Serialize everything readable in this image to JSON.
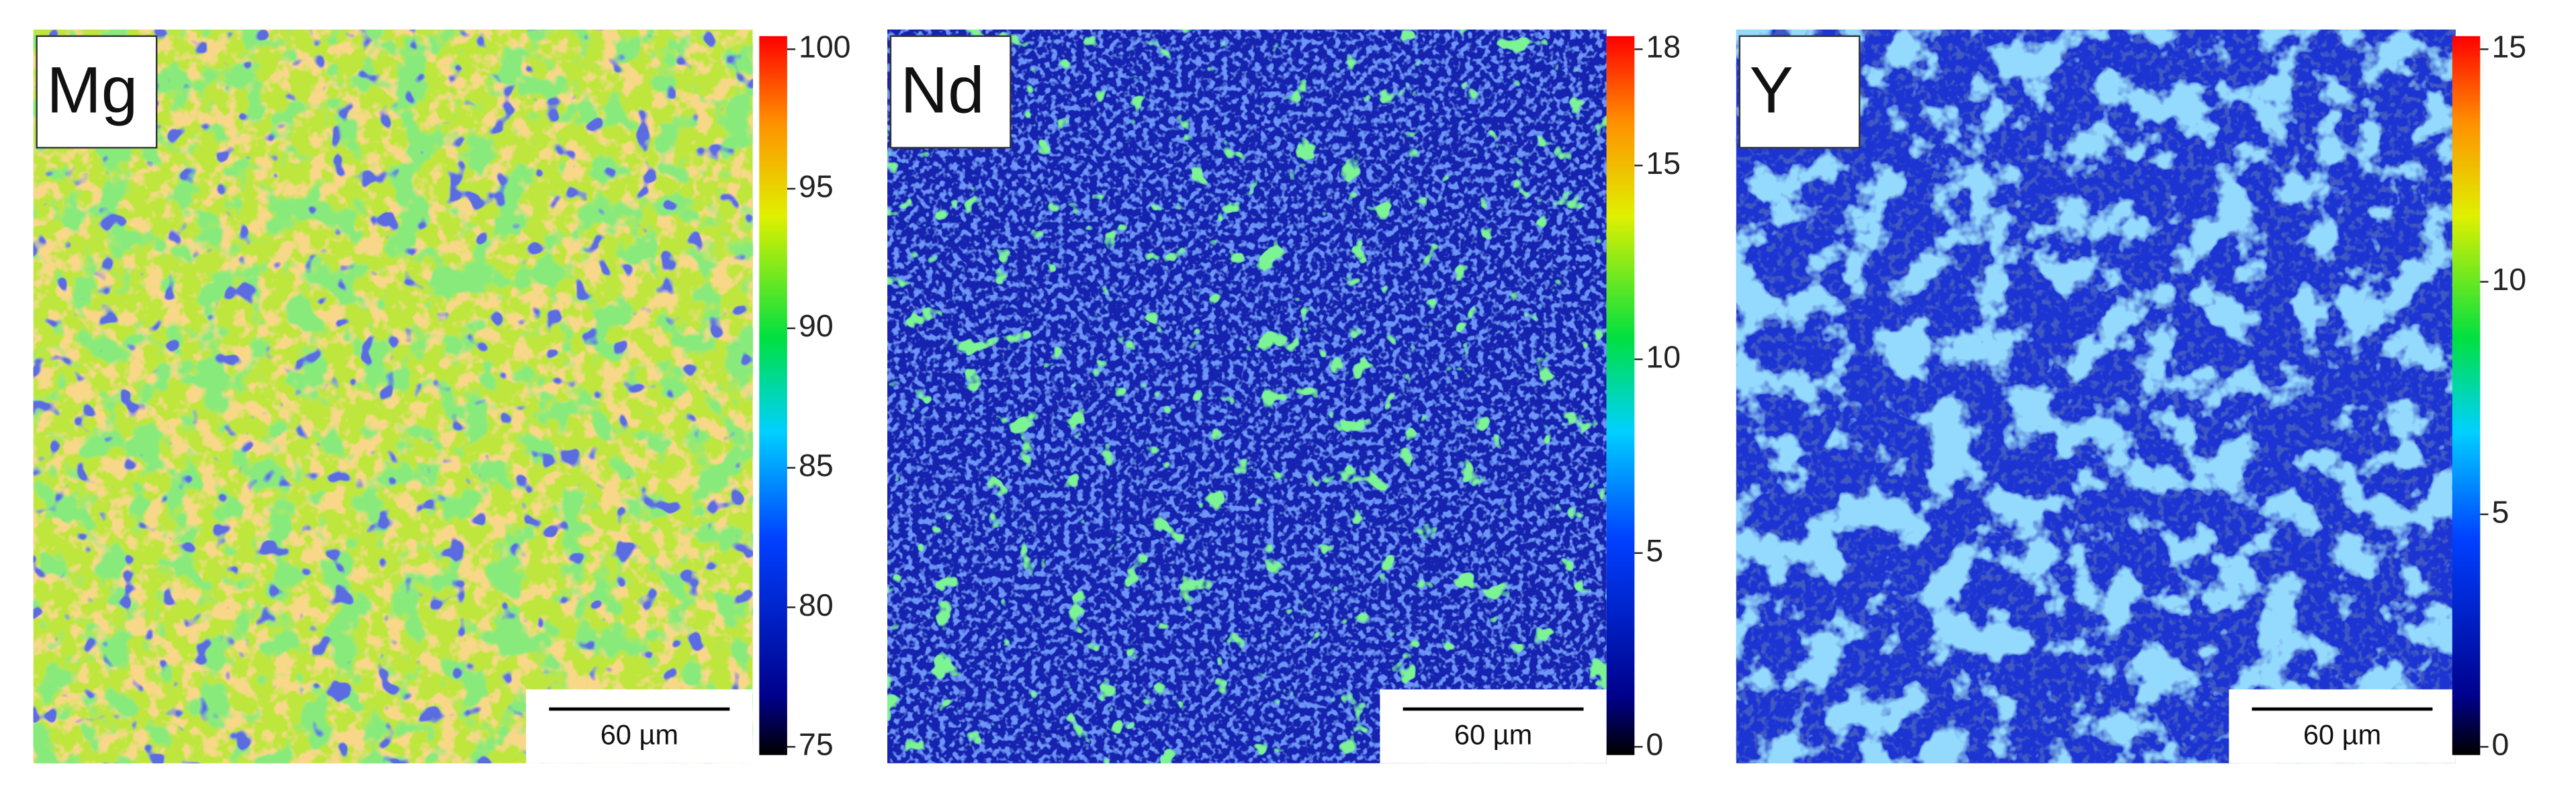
{
  "chart_data": [
    {
      "type": "heatmap",
      "title": "Mg",
      "scale_bar": "60 µm",
      "clim": [
        75,
        100
      ],
      "cticks": [
        75,
        80,
        85,
        90,
        95,
        100
      ]
    },
    {
      "type": "heatmap",
      "title": "Nd",
      "scale_bar": "60 µm",
      "clim": [
        0,
        18
      ],
      "cticks": [
        0,
        5,
        10,
        15,
        18
      ]
    },
    {
      "type": "heatmap",
      "title": "Y",
      "scale_bar": "60 µm",
      "clim": [
        0,
        15
      ],
      "cticks": [
        0,
        5,
        10,
        15
      ]
    }
  ]
}
